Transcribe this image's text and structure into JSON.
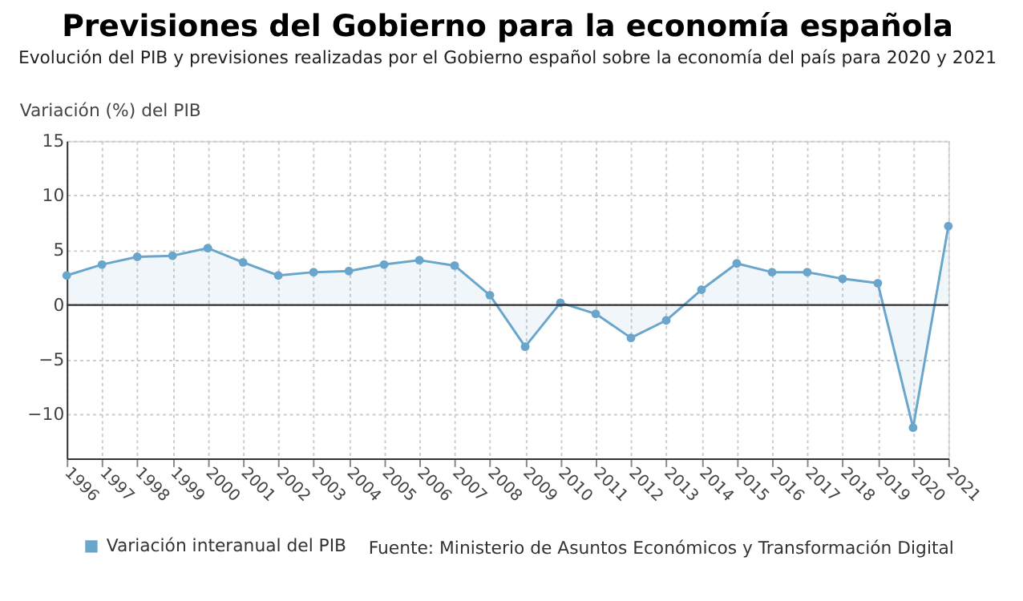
{
  "chart_data": {
    "type": "area",
    "title": "Previsiones del Gobierno para la economía española",
    "subtitle": "Evolución del PIB y previsiones realizadas por el Gobierno español sobre la economía del país para 2020 y 2021",
    "ylabel": "Variación (%) del PIB",
    "categories": [
      "1996",
      "1997",
      "1998",
      "1999",
      "2000",
      "2001",
      "2002",
      "2003",
      "2004",
      "2005",
      "2006",
      "2007",
      "2008",
      "2009",
      "2010",
      "2011",
      "2012",
      "2013",
      "2014",
      "2015",
      "2016",
      "2017",
      "2018",
      "2019",
      "2020",
      "2021"
    ],
    "series": [
      {
        "name": "Variación interanual del PIB",
        "color": "#6aa6cc",
        "values": [
          2.7,
          3.7,
          4.4,
          4.5,
          5.2,
          3.9,
          2.7,
          3.0,
          3.1,
          3.7,
          4.1,
          3.6,
          0.9,
          -3.8,
          0.2,
          -0.8,
          -3.0,
          -1.4,
          1.4,
          3.8,
          3.0,
          3.0,
          2.4,
          2.0,
          -11.2,
          7.2
        ]
      }
    ],
    "ylim": [
      -14,
      15
    ],
    "yticks": [
      -10,
      -5,
      0,
      5,
      10,
      15
    ],
    "grid": true,
    "legend": "bottom left",
    "marker": "circle",
    "line_style": "solid",
    "ref_lines": [
      {
        "axis": "y",
        "value": 0,
        "color": "#333333"
      }
    ],
    "annotations": [
      "Fuente: Ministerio de Asuntos Económicos y Transformación Digital"
    ]
  }
}
